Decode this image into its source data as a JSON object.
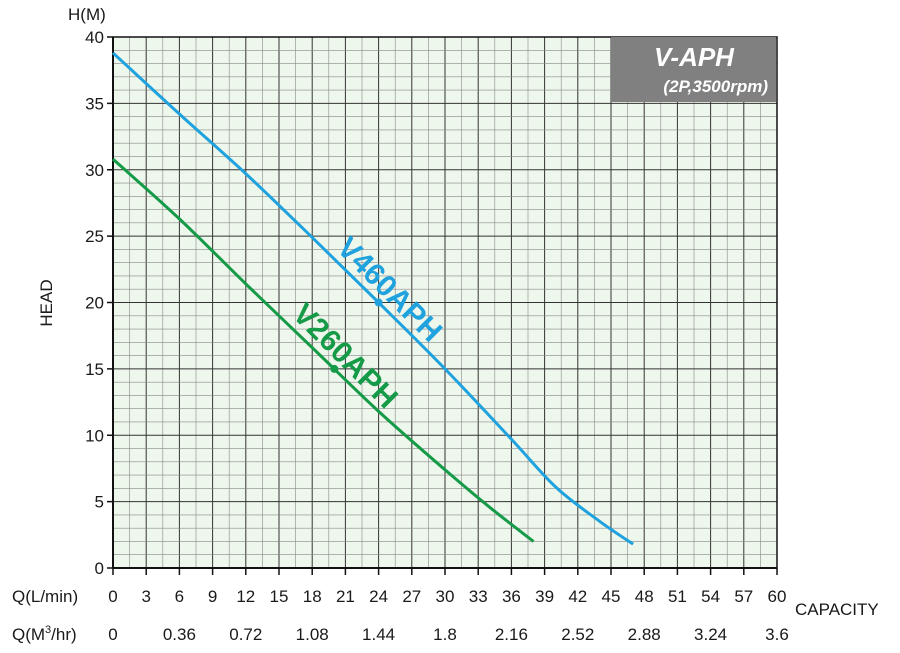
{
  "chart_data": {
    "type": "line",
    "title": "V-APH",
    "subtitle": "(2P,3500rpm)",
    "ylabel_unit": "H(M)",
    "ylabel": "HEAD",
    "xlabel": "CAPACITY",
    "x_axis_primary_label": "Q(L/min)",
    "x_axis_secondary_label_parts": [
      "Q(M",
      "3",
      "/hr)"
    ],
    "xlim": [
      0,
      60
    ],
    "ylim": [
      0,
      40
    ],
    "x_ticks": [
      0,
      3,
      6,
      9,
      12,
      15,
      18,
      21,
      24,
      27,
      30,
      33,
      36,
      39,
      42,
      45,
      48,
      51,
      54,
      57,
      60
    ],
    "x_ticks_m3hr": [
      "0",
      "0.36",
      "0.72",
      "1.08",
      "1.44",
      "1.8",
      "2.16",
      "2.52",
      "2.88",
      "3.24",
      "3.6"
    ],
    "y_ticks": [
      0,
      5,
      10,
      15,
      20,
      25,
      30,
      35,
      40
    ],
    "grid": true,
    "minor_grid_x_step": 1.5,
    "minor_grid_y_step": 1,
    "background_color": "#eef7ec",
    "title_box_color": "#808080",
    "series": [
      {
        "name": "V460APH",
        "color": "#1fa2de",
        "x": [
          0,
          6,
          12,
          18,
          24,
          30,
          36,
          40,
          44,
          47
        ],
        "y": [
          38.8,
          34.2,
          29.7,
          24.9,
          20.0,
          15.0,
          9.7,
          6.1,
          3.5,
          1.8
        ],
        "marker": {
          "x": 24,
          "y": 20
        }
      },
      {
        "name": "V260APH",
        "color": "#159a48",
        "x": [
          0,
          6,
          12,
          18,
          24,
          30,
          34,
          38
        ],
        "y": [
          30.8,
          26.3,
          21.4,
          16.6,
          11.8,
          7.4,
          4.6,
          2.0
        ],
        "marker": {
          "x": 20,
          "y": 15
        }
      }
    ]
  }
}
